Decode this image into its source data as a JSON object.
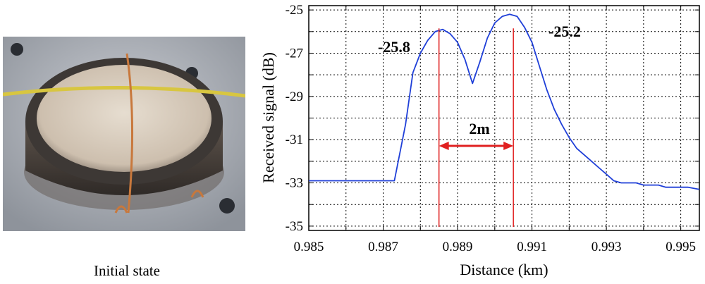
{
  "photo": {
    "caption": "Initial state"
  },
  "colors": {
    "curve": "#1f3fd8",
    "marker": "#e02020",
    "background": "#ffffff",
    "grid": "#000000"
  },
  "chart_data": {
    "type": "line",
    "xlabel": "Distance (km)",
    "ylabel": "Received signal (dB)",
    "xlim": [
      0.985,
      0.9955
    ],
    "ylim": [
      -35.2,
      -24.8
    ],
    "xticks": [
      0.985,
      0.987,
      0.989,
      0.991,
      0.993,
      0.995
    ],
    "xtick_labels": [
      "0.985",
      "0.987",
      "0.989",
      "0.991",
      "0.993",
      "0.995"
    ],
    "yticks": [
      -25,
      -27,
      -29,
      -31,
      -33,
      -35
    ],
    "ytick_labels": [
      "-25",
      "-27",
      "-29",
      "-31",
      "-33",
      "-35"
    ],
    "grid": true,
    "series": [
      {
        "x": [
          0.985,
          0.9873,
          0.9876,
          0.9878,
          0.988,
          0.9882,
          0.9884,
          0.9886,
          0.9888,
          0.989,
          0.9892,
          0.9894,
          0.9896,
          0.9898,
          0.99,
          0.9902,
          0.9904,
          0.9906,
          0.9908,
          0.991,
          0.9912,
          0.9914,
          0.9916,
          0.9918,
          0.992,
          0.9922,
          0.9924,
          0.9926,
          0.9928,
          0.993,
          0.9932,
          0.9934,
          0.9936,
          0.9938,
          0.994,
          0.9942,
          0.9944,
          0.9946,
          0.9948,
          0.995,
          0.9952,
          0.9955
        ],
        "y": [
          -32.9,
          -32.9,
          -30.3,
          -27.9,
          -27.0,
          -26.4,
          -26.0,
          -25.9,
          -26.1,
          -26.5,
          -27.3,
          -28.4,
          -27.4,
          -26.3,
          -25.6,
          -25.3,
          -25.2,
          -25.3,
          -25.8,
          -26.5,
          -27.6,
          -28.7,
          -29.6,
          -30.3,
          -30.9,
          -31.4,
          -31.7,
          -32.0,
          -32.3,
          -32.6,
          -32.9,
          -33.0,
          -33.0,
          -33.0,
          -33.1,
          -33.1,
          -33.1,
          -33.2,
          -33.2,
          -33.2,
          -33.2,
          -33.3
        ]
      }
    ],
    "markers": [
      {
        "x": 0.9885,
        "peak_label": "-25.8"
      },
      {
        "x": 0.9905,
        "peak_label": "-25.2"
      }
    ],
    "span_label": "2m"
  }
}
